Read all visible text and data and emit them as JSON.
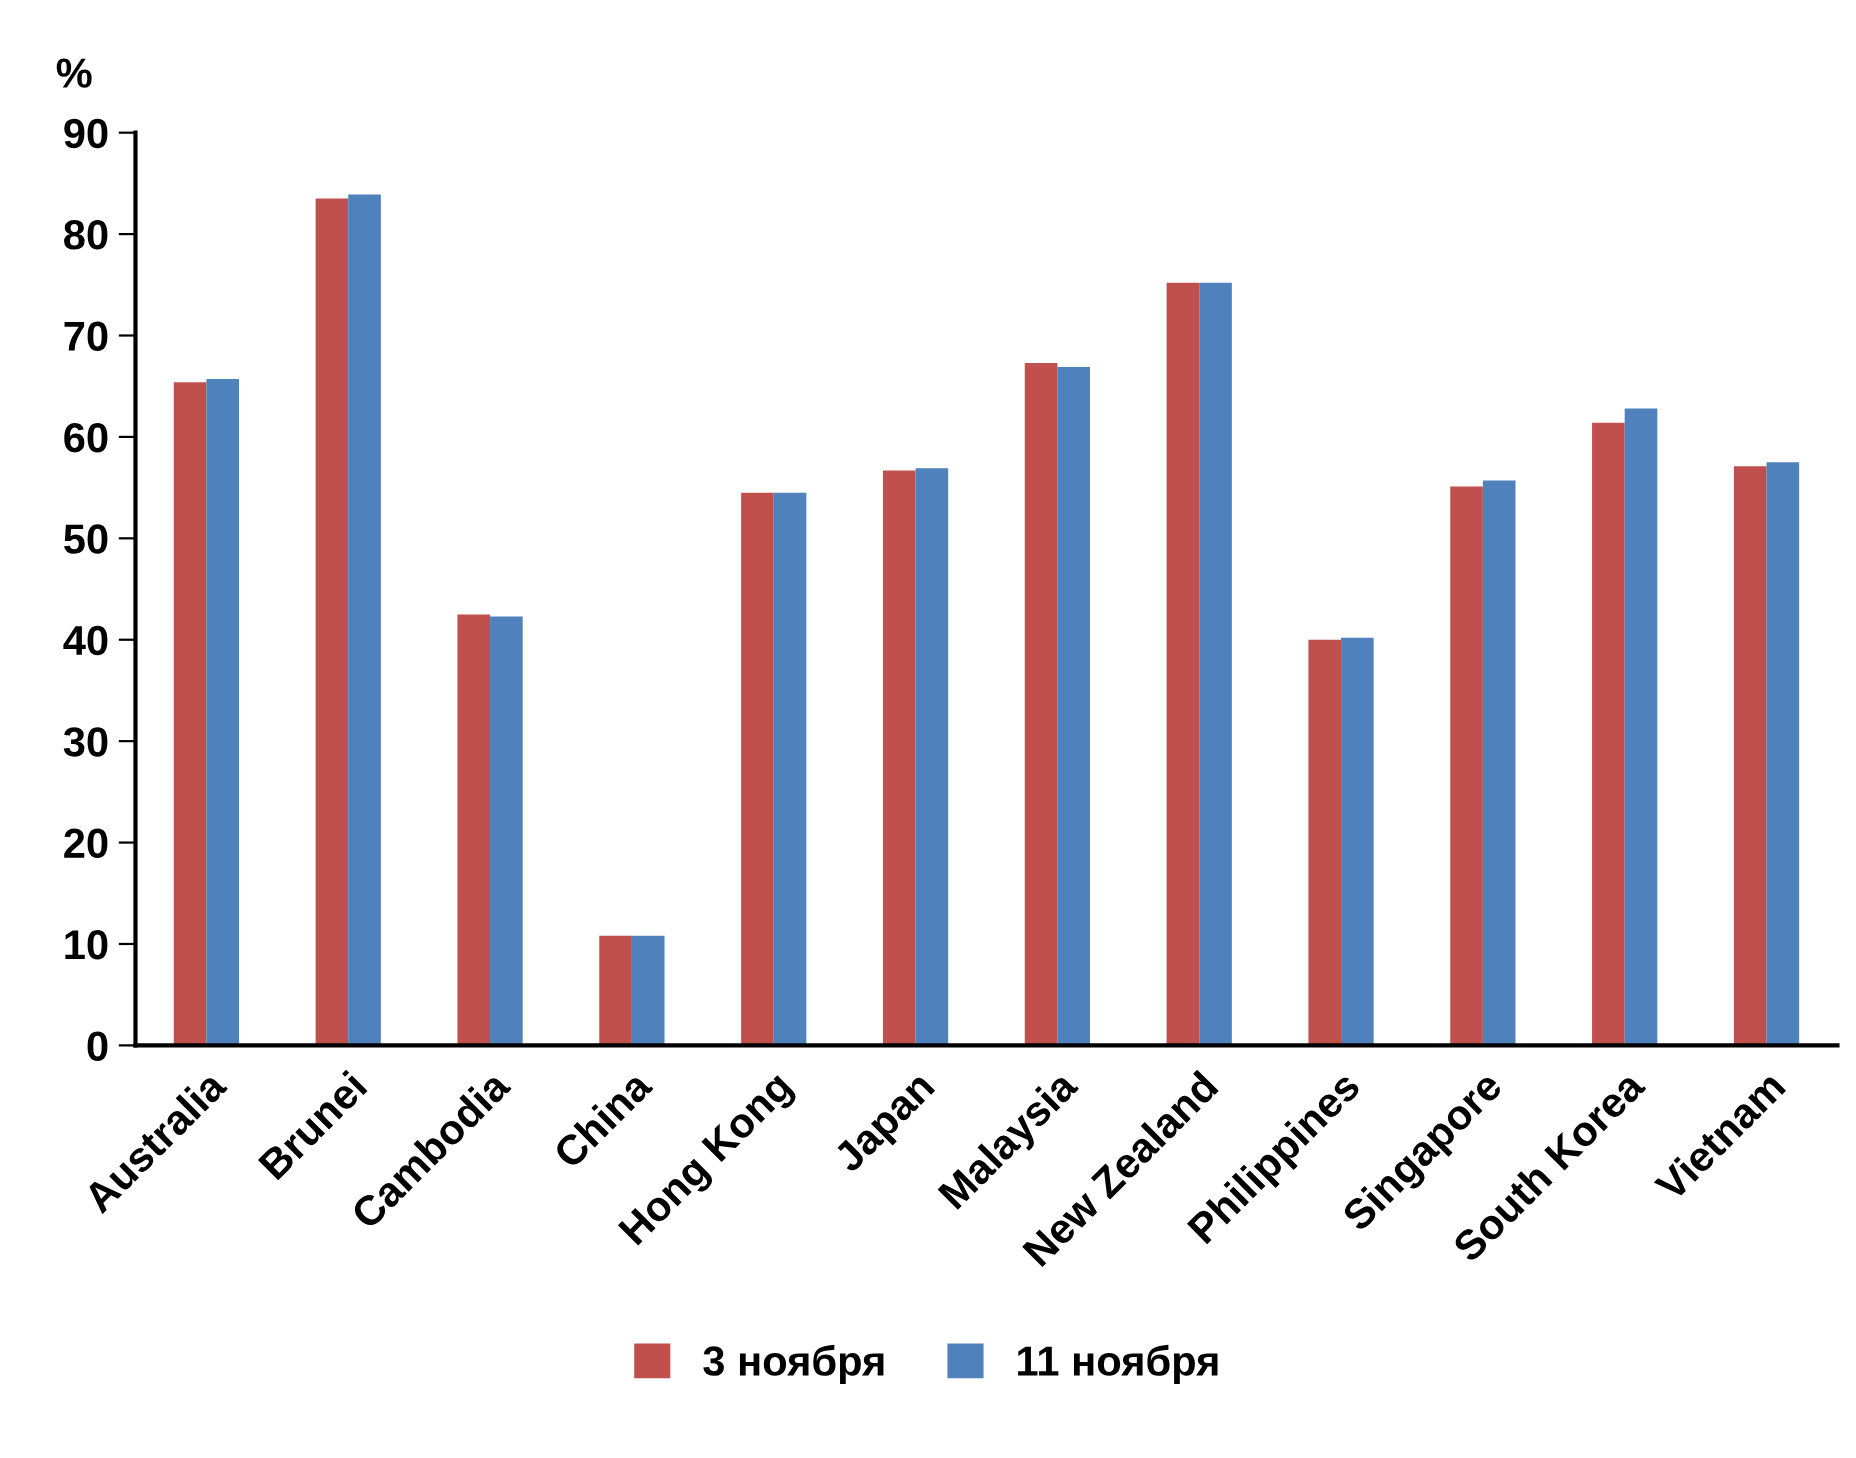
{
  "chart_data": {
    "type": "bar",
    "ylabel": "%",
    "categories": [
      "Australia",
      "Brunei",
      "Cambodia",
      "China",
      "Hong Kong",
      "Japan",
      "Malaysia",
      "New Zealand",
      "Philippines",
      "Singapore",
      "South Korea",
      "Vietnam"
    ],
    "series": [
      {
        "name": "3 ноября",
        "color": "#c0504d",
        "values": [
          65.4,
          83.5,
          42.5,
          10.8,
          54.5,
          56.7,
          67.3,
          75.2,
          40.0,
          55.1,
          61.4,
          57.1
        ]
      },
      {
        "name": "11 ноября",
        "color": "#4f81bd",
        "values": [
          65.7,
          83.9,
          42.3,
          10.8,
          54.5,
          56.9,
          66.9,
          75.2,
          40.2,
          55.7,
          62.8,
          57.5
        ]
      }
    ],
    "ylim": [
      0,
      90
    ],
    "yticks": [
      0,
      10,
      20,
      30,
      40,
      50,
      60,
      70,
      80,
      90
    ],
    "grid": false,
    "legend": "bottom"
  }
}
